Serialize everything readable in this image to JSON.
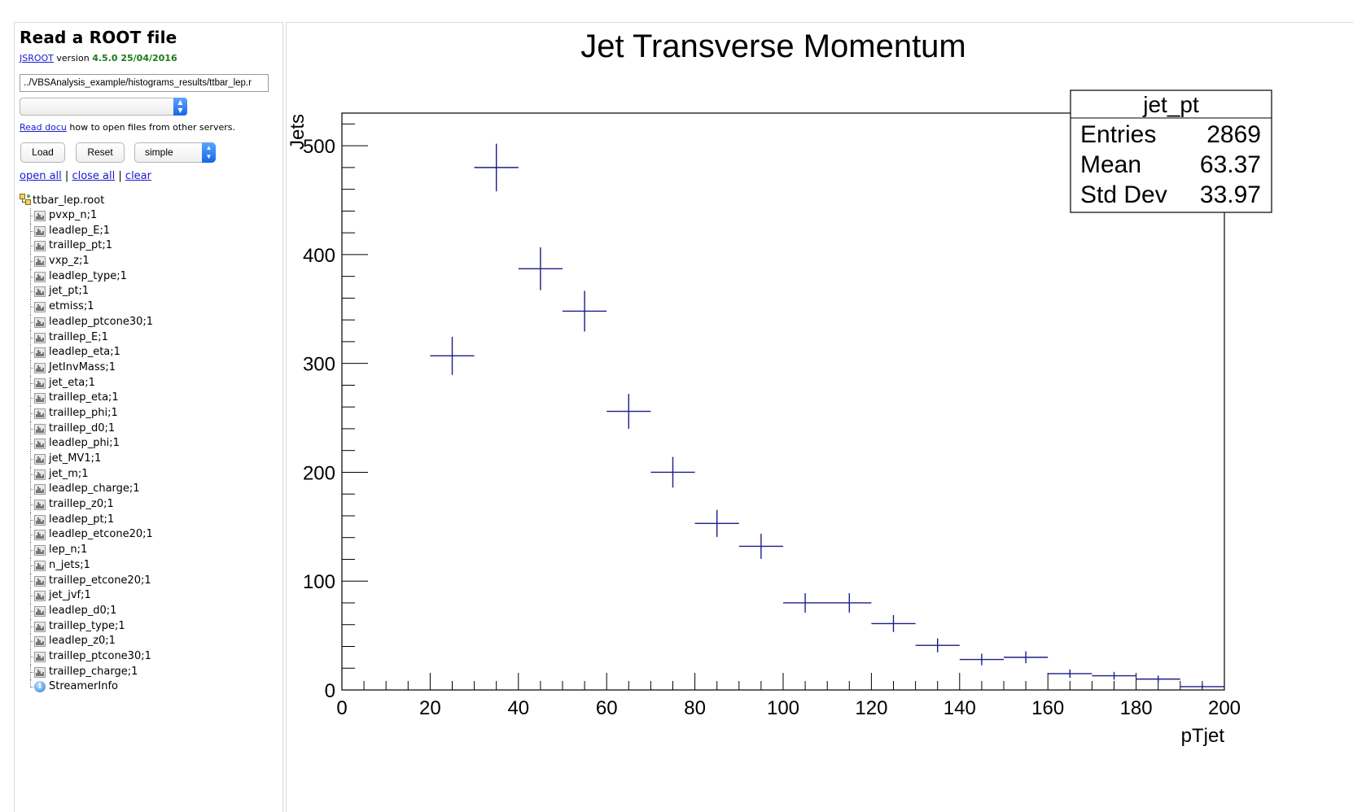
{
  "left_panel": {
    "title": "Read a ROOT file",
    "version_link": "JSROOT",
    "version_text": "version",
    "version_number": "4.5.0 25/04/2016",
    "file_input_value": "../VBSAnalysis_example/histograms_results/ttbar_lep.r",
    "docu_link": "Read docu",
    "docu_text": "how to open files from other servers.",
    "buttons": {
      "load": "Load",
      "reset": "Reset"
    },
    "layout_selected": "simple",
    "tree_controls": {
      "open_all": "open all",
      "sep1": "|",
      "close_all": "close all",
      "sep2": "|",
      "clear": "clear"
    },
    "tree": {
      "root": "ttbar_lep.root",
      "items": [
        "pvxp_n;1",
        "leadlep_E;1",
        "traillep_pt;1",
        "vxp_z;1",
        "leadlep_type;1",
        "jet_pt;1",
        "etmiss;1",
        "leadlep_ptcone30;1",
        "traillep_E;1",
        "leadlep_eta;1",
        "JetInvMass;1",
        "jet_eta;1",
        "traillep_eta;1",
        "traillep_phi;1",
        "traillep_d0;1",
        "leadlep_phi;1",
        "jet_MV1;1",
        "jet_m;1",
        "leadlep_charge;1",
        "traillep_z0;1",
        "leadlep_pt;1",
        "leadlep_etcone20;1",
        "lep_n;1",
        "n_jets;1",
        "traillep_etcone20;1",
        "jet_jvf;1",
        "leadlep_d0;1",
        "traillep_type;1",
        "leadlep_z0;1",
        "traillep_ptcone30;1",
        "traillep_charge;1"
      ],
      "info_item": "StreamerInfo",
      "icons": {
        "root": "root-file-icon",
        "item": "histogram-icon",
        "info": "info-icon"
      }
    }
  },
  "chart_data": {
    "type": "scatter",
    "title": "Jet Transverse Momentum",
    "xlabel": "pTjet",
    "ylabel": "Jets",
    "xlim": [
      0,
      200
    ],
    "ylim": [
      0,
      530
    ],
    "x_ticks": [
      0,
      20,
      40,
      60,
      80,
      100,
      120,
      140,
      160,
      180,
      200
    ],
    "y_ticks": [
      0,
      100,
      200,
      300,
      400,
      500
    ],
    "x_bin_width": 10,
    "series": [
      {
        "x": [
          25,
          35,
          45,
          55,
          65,
          75,
          85,
          95,
          105,
          115,
          125,
          135,
          145,
          155,
          165,
          175,
          185,
          195
        ],
        "y": [
          307,
          480,
          387,
          348,
          256,
          200,
          153,
          132,
          80,
          80,
          61,
          41,
          28,
          30,
          15,
          13,
          10,
          3
        ],
        "yerr": [
          17.5,
          21.9,
          19.7,
          18.7,
          16.0,
          14.1,
          12.4,
          11.5,
          8.9,
          8.9,
          7.8,
          6.4,
          5.3,
          5.5,
          3.9,
          3.6,
          3.2,
          1.7
        ],
        "color": "#1c1c8c"
      }
    ],
    "stats": {
      "name": "jet_pt",
      "rows": [
        {
          "label": "Entries",
          "value": "2869"
        },
        {
          "label": "Mean",
          "value": "63.37"
        },
        {
          "label": "Std Dev",
          "value": "33.97"
        }
      ]
    },
    "grid": false,
    "legend_position": "top-right"
  }
}
